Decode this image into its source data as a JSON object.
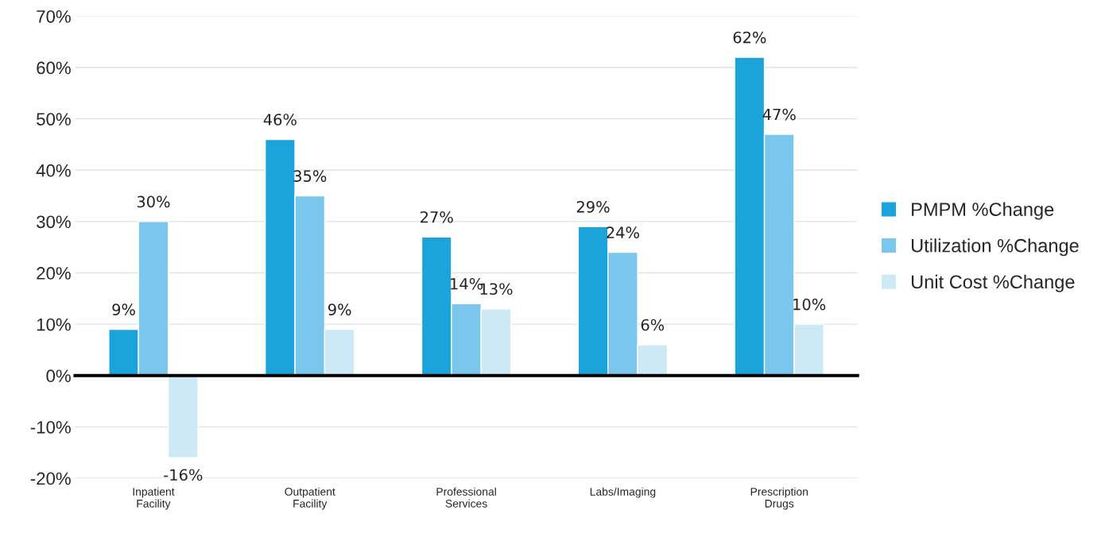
{
  "chart_data": {
    "type": "bar",
    "categories": [
      "Inpatient\nFacility",
      "Outpatient\nFacility",
      "Professional\nServices",
      "Labs/Imaging",
      "Prescription\nDrugs"
    ],
    "series": [
      {
        "name": "PMPM %Change",
        "color": "#1ba3dc",
        "values": [
          9,
          46,
          27,
          29,
          62
        ],
        "value_labels": [
          "9%",
          "46%",
          "27%",
          "29%",
          "62%"
        ]
      },
      {
        "name": "Utilization %Change",
        "color": "#7ac6ec",
        "values": [
          30,
          35,
          14,
          24,
          47
        ],
        "value_labels": [
          "30%",
          "35%",
          "14%",
          "24%",
          "47%"
        ]
      },
      {
        "name": "Unit Cost %Change",
        "color": "#cde9f6",
        "values": [
          -16,
          9,
          13,
          6,
          10
        ],
        "value_labels": [
          "-16%",
          "9%",
          "13%",
          "6%",
          "10%"
        ]
      }
    ],
    "ylim": [
      -20,
      70
    ],
    "yticks": [
      {
        "value": -20,
        "label": "-20%"
      },
      {
        "value": -10,
        "label": "-10%"
      },
      {
        "value": 0,
        "label": "0%"
      },
      {
        "value": 10,
        "label": "10%"
      },
      {
        "value": 20,
        "label": "20%"
      },
      {
        "value": 30,
        "label": "30%"
      },
      {
        "value": 40,
        "label": "40%"
      },
      {
        "value": 50,
        "label": "50%"
      },
      {
        "value": 60,
        "label": "60%"
      },
      {
        "value": 70,
        "label": "70%"
      }
    ],
    "grid": "y",
    "legend": "right"
  }
}
